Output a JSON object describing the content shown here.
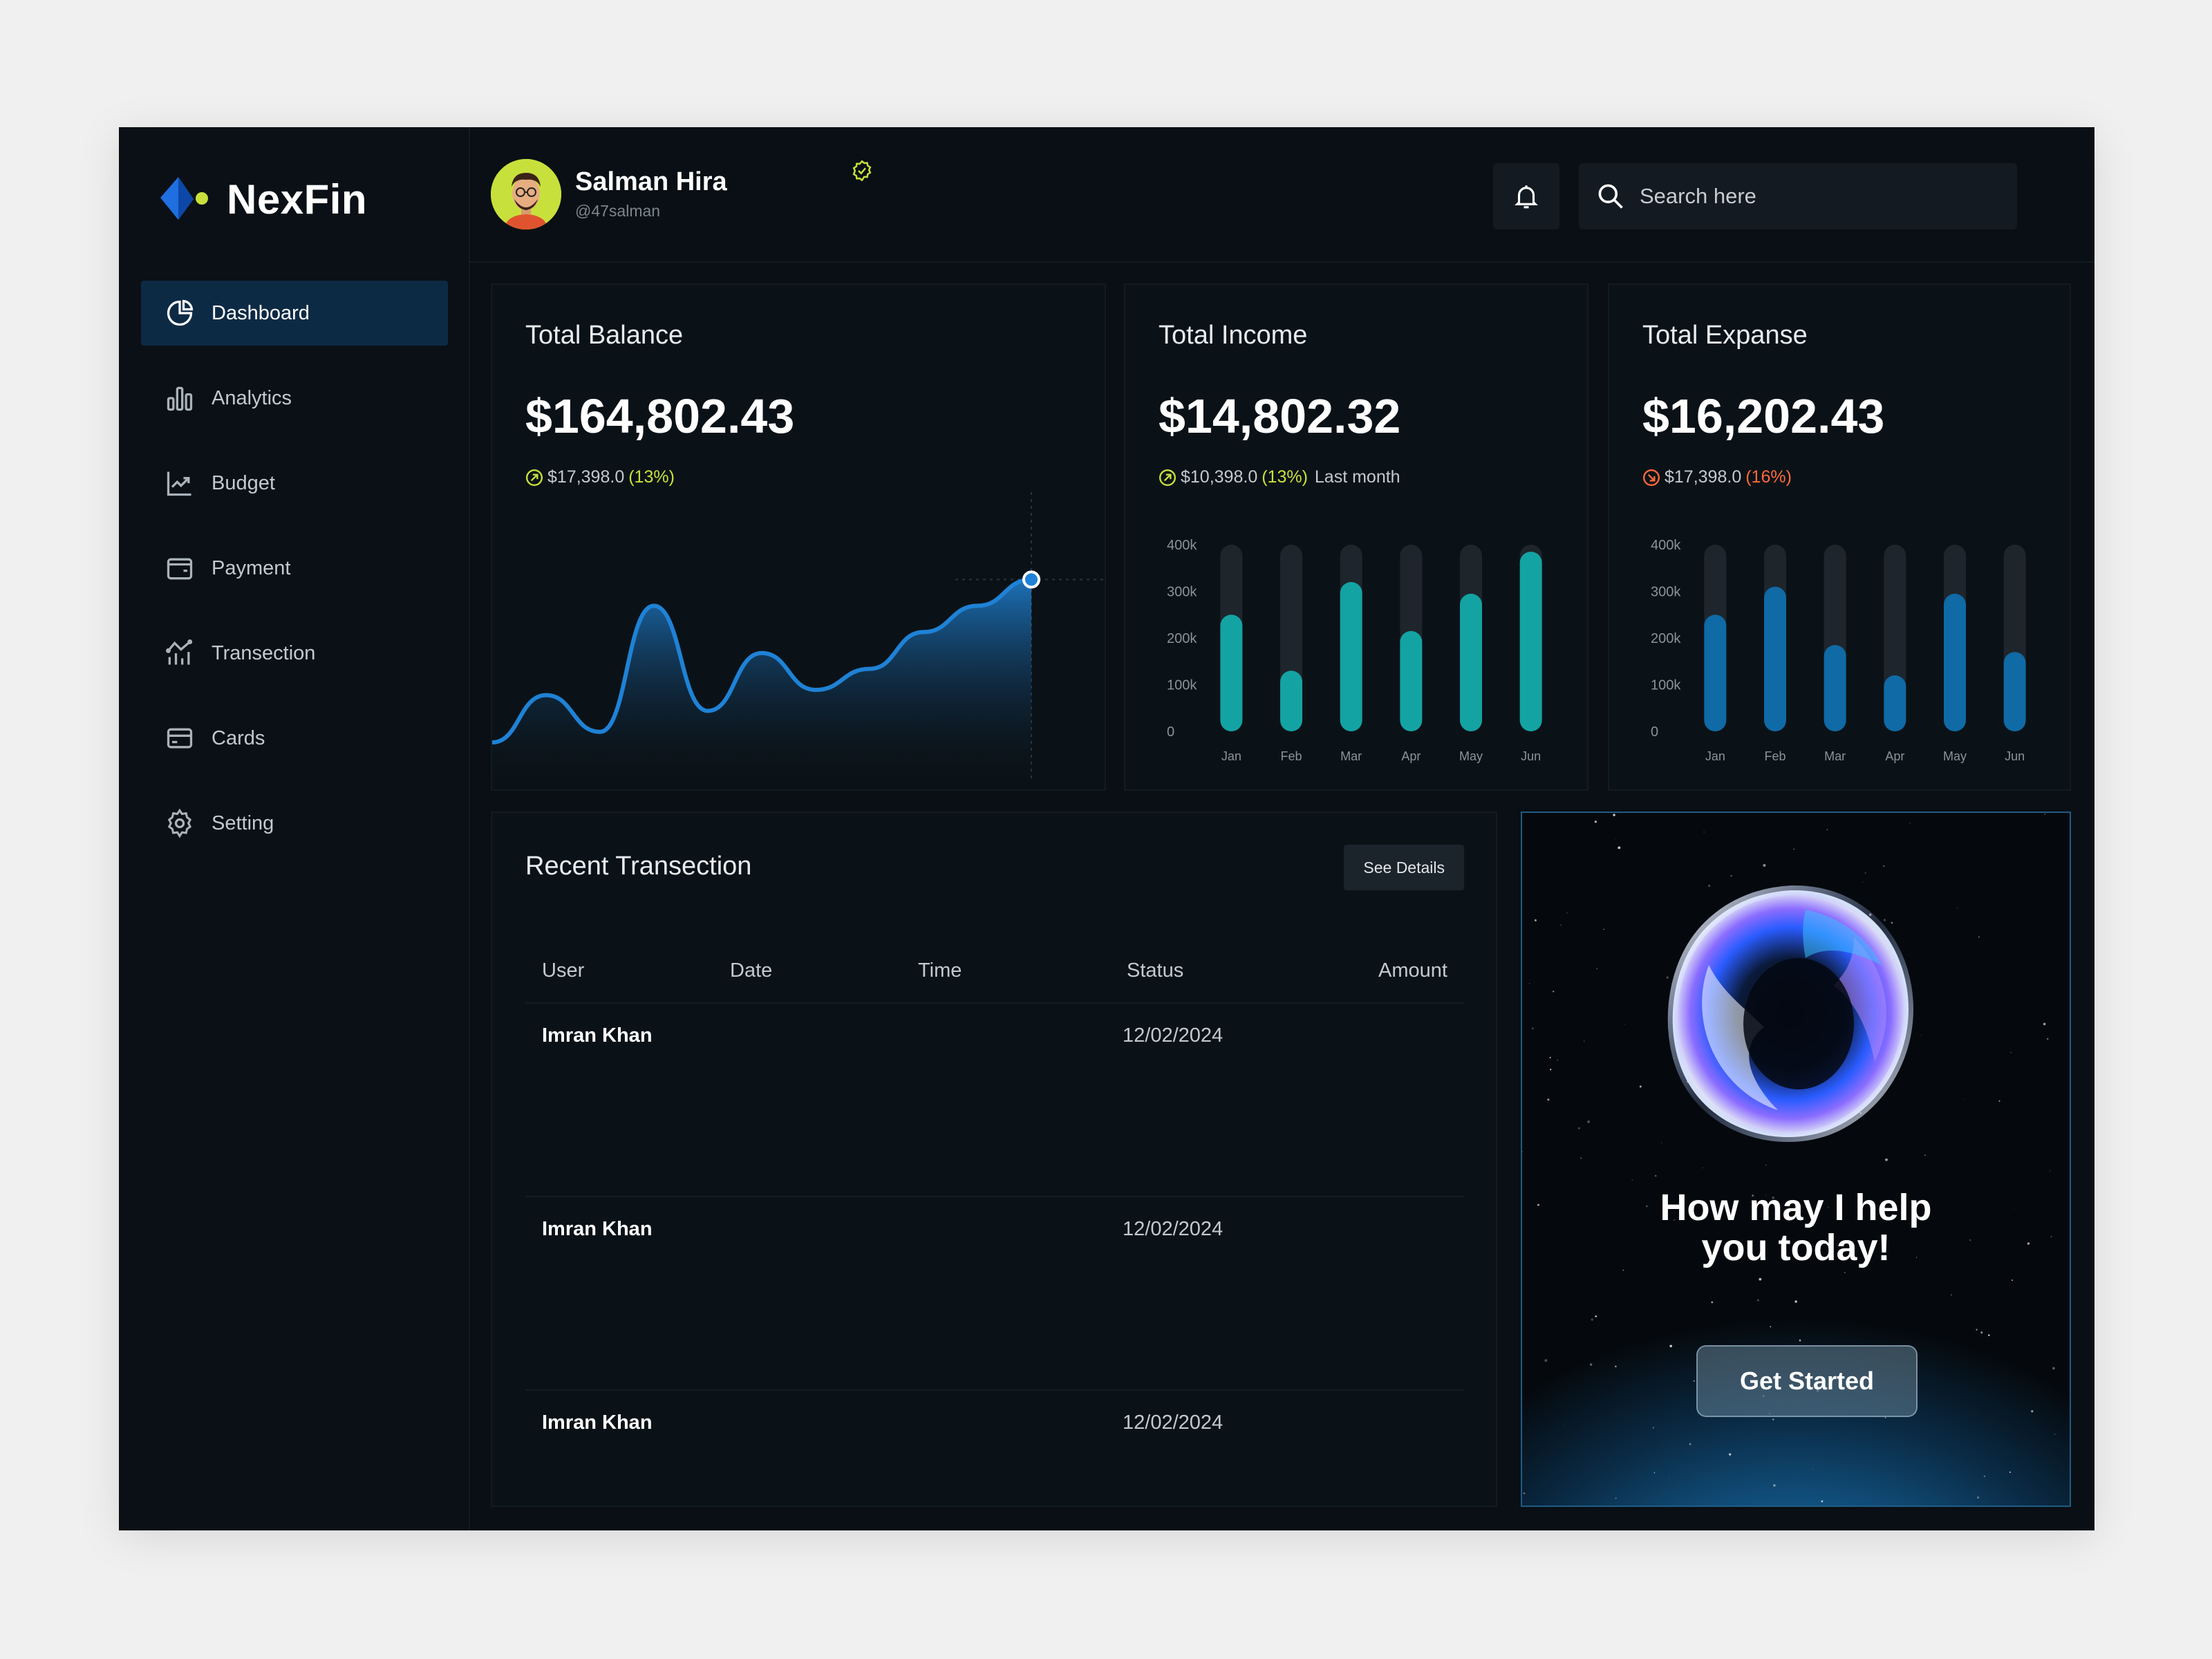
{
  "brand": {
    "name": "NexFin"
  },
  "sidebar": {
    "items": [
      {
        "label": "Dashboard",
        "icon": "pie-chart-icon",
        "active": true
      },
      {
        "label": "Analytics",
        "icon": "bar-chart-icon",
        "active": false
      },
      {
        "label": "Budget",
        "icon": "line-chart-icon",
        "active": false
      },
      {
        "label": "Payment",
        "icon": "wallet-icon",
        "active": false
      },
      {
        "label": "Transection",
        "icon": "activity-icon",
        "active": false
      },
      {
        "label": "Cards",
        "icon": "card-icon",
        "active": false
      },
      {
        "label": "Setting",
        "icon": "gear-icon",
        "active": false
      }
    ]
  },
  "header": {
    "user_name": "Salman Hira",
    "user_handle": "@47salman",
    "search_placeholder": "Search here"
  },
  "balance": {
    "title": "Total Balance",
    "value": "$164,802.43",
    "delta_amount": "$17,398.0",
    "delta_pct": "(13%)"
  },
  "income": {
    "title": "Total Income",
    "value": "$14,802.32",
    "delta_amount": "$10,398.0",
    "delta_pct": "(13%)",
    "delta_suffix": "Last month"
  },
  "expense": {
    "title": "Total Expanse",
    "value": "$16,202.43",
    "delta_amount": "$17,398.0",
    "delta_pct": "(16%)"
  },
  "transactions": {
    "title": "Recent Transection",
    "see_details": "See Details",
    "columns": [
      "User",
      "Date",
      "Time",
      "Status",
      "Amount"
    ],
    "rows": [
      {
        "user": "Imran Khan",
        "status": "12/02/2024"
      },
      {
        "user": "Imran Khan",
        "status": "12/02/2024"
      },
      {
        "user": "Imran Khan",
        "status": "12/02/2024"
      }
    ]
  },
  "assistant": {
    "title_line1": "How may I help",
    "title_line2": "you today!",
    "button": "Get Started"
  },
  "colors": {
    "accent_blue": "#1f82d6",
    "income_bar": "#14a3a3",
    "expense_bar": "#0f6aa6",
    "positive": "#c8e03c",
    "negative": "#ff6a3d",
    "track": "#1e252c"
  },
  "chart_data": [
    {
      "type": "area",
      "title": "Total Balance",
      "x": [
        0,
        1,
        2,
        3,
        4,
        5,
        6,
        7,
        8,
        9,
        10
      ],
      "values": [
        10,
        28,
        14,
        62,
        22,
        44,
        30,
        38,
        52,
        62,
        72
      ],
      "ylim": [
        0,
        100
      ],
      "grid": false
    },
    {
      "type": "bar",
      "title": "Total Income",
      "categories": [
        "Jan",
        "Feb",
        "Mar",
        "Apr",
        "May",
        "Jun"
      ],
      "values": [
        250000,
        130000,
        320000,
        215000,
        295000,
        385000
      ],
      "yticks": [
        "0",
        "100k",
        "200k",
        "300k",
        "400k"
      ],
      "ylim": [
        0,
        400000
      ]
    },
    {
      "type": "bar",
      "title": "Total Expanse",
      "categories": [
        "Jan",
        "Feb",
        "Mar",
        "Apr",
        "May",
        "Jun"
      ],
      "values": [
        250000,
        310000,
        185000,
        120000,
        295000,
        170000
      ],
      "yticks": [
        "0",
        "100k",
        "200k",
        "300k",
        "400k"
      ],
      "ylim": [
        0,
        400000
      ]
    }
  ]
}
